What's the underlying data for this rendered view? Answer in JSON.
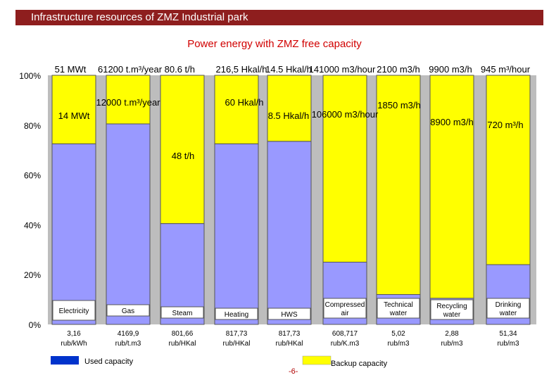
{
  "header": {
    "title": "Infrastructure resources of ZMZ Industrial park"
  },
  "page_number": "-6-",
  "chart_data": {
    "type": "bar",
    "stacked": true,
    "title": "Power energy with ZMZ free capacity",
    "ylim": [
      0,
      100
    ],
    "yticks": [
      "0%",
      "20%",
      "40%",
      "60%",
      "80%",
      "100%"
    ],
    "categories": [
      "Electricity",
      "Gas",
      "Steam",
      "Heating",
      "HWS",
      "Compressed air",
      "Technical water",
      "Recycling water",
      "Drinking water"
    ],
    "series": [
      {
        "name": "Used capacity",
        "color": "#9999ff",
        "values": [
          72.5,
          80.5,
          40.5,
          72.5,
          73.5,
          25.0,
          12.0,
          10.5,
          24.0
        ]
      },
      {
        "name": "Backup capacity",
        "color": "#ffff00",
        "values": [
          27.5,
          19.5,
          59.5,
          27.5,
          26.5,
          75.0,
          88.0,
          89.5,
          76.0
        ]
      }
    ],
    "tariffs": [
      "3,16 rub/kWh",
      "4169,9 rub/t.m3",
      "801,66 rub/HKal",
      "817,73 rub/HKal",
      "817,73 rub/HKal",
      "608,717 rub/K.m3",
      "5,02 rub/m3",
      "2,88 rub/m3",
      "51,34 rub/m3"
    ],
    "annotations": [
      "51 MWt",
      "61200 t.m³/year 80.6 t/h",
      "216,5 Hkal/h",
      "14.5 Hkal/h",
      "141000 m3/hour",
      "2100 m3/h",
      "9900 m3/h",
      "945 m³/hour",
      "14 MWt",
      "12000 t.m³/year",
      "60 Hkal/h",
      "8.5 Hkal/h",
      "106000 m3/hour",
      "1850 m3/h",
      "8900 m3/h",
      "720 m³/h",
      "48 t/h"
    ],
    "legend": [
      "Used capacity",
      "Backup capacity"
    ],
    "colors": {
      "used": "#9999ff",
      "backup": "#ffff00",
      "legend_used": "#0033cc",
      "legend_backup": "#ffff00"
    }
  }
}
